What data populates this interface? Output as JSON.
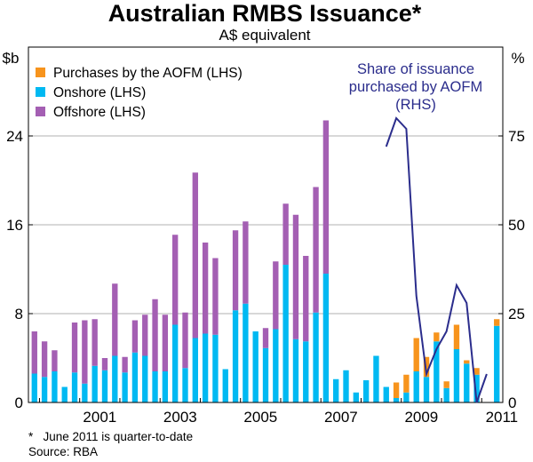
{
  "chart_data": {
    "type": "bar",
    "title": "Australian RMBS Issuance*",
    "subtitle": "A$ equivalent",
    "y_left_unit": "$b",
    "y_right_unit": "%",
    "ylim_left": [
      0,
      32
    ],
    "ylim_right": [
      0,
      100
    ],
    "yticks_left": [
      "0",
      "8",
      "16",
      "24"
    ],
    "yticks_right": [
      "0",
      "25",
      "50",
      "75"
    ],
    "xticks": [
      "2001",
      "2003",
      "2005",
      "2007",
      "2009",
      "2011"
    ],
    "x_range": [
      "Q4 1999",
      "Q2 2011"
    ],
    "colors": {
      "purchases": "#f7941d",
      "onshore": "#00b9f2",
      "offshore": "#a45fb3",
      "line": "#2b2d8c"
    },
    "legend": [
      {
        "key": "purchases",
        "label": "Purchases by the AOFM (LHS)"
      },
      {
        "key": "onshore",
        "label": "Onshore (LHS)"
      },
      {
        "key": "offshore",
        "label": "Offshore (LHS)"
      }
    ],
    "quarters": [
      "1999Q4",
      "2000Q1",
      "2000Q2",
      "2000Q3",
      "2000Q4",
      "2001Q1",
      "2001Q2",
      "2001Q3",
      "2001Q4",
      "2002Q1",
      "2002Q2",
      "2002Q3",
      "2002Q4",
      "2003Q1",
      "2003Q2",
      "2003Q3",
      "2003Q4",
      "2004Q1",
      "2004Q2",
      "2004Q3",
      "2004Q4",
      "2005Q1",
      "2005Q2",
      "2005Q3",
      "2005Q4",
      "2006Q1",
      "2006Q2",
      "2006Q3",
      "2006Q4",
      "2007Q1",
      "2007Q2",
      "2007Q3",
      "2007Q4",
      "2008Q1",
      "2008Q2",
      "2008Q3",
      "2008Q4",
      "2009Q1",
      "2009Q2",
      "2009Q3",
      "2009Q4",
      "2010Q1",
      "2010Q2",
      "2010Q3",
      "2010Q4",
      "2011Q1",
      "2011Q2"
    ],
    "series": [
      {
        "name": "Purchases by the AOFM (LHS)",
        "key": "purchases",
        "values": [
          0,
          0,
          0,
          0,
          0,
          0,
          0,
          0,
          0,
          0,
          0,
          0,
          0,
          0,
          0,
          0,
          0,
          0,
          0,
          0,
          0,
          0,
          0,
          0,
          0,
          0,
          0,
          0,
          0,
          0,
          0,
          0,
          0,
          0,
          0,
          0,
          1.4,
          1.6,
          3.0,
          1.8,
          0.8,
          0.6,
          2.2,
          0.3,
          0.6,
          0,
          0.6
        ]
      },
      {
        "name": "Onshore (LHS)",
        "key": "onshore",
        "values": [
          2.6,
          2.3,
          2.8,
          1.4,
          2.7,
          1.7,
          3.3,
          2.9,
          4.2,
          2.7,
          4.5,
          4.2,
          2.8,
          2.8,
          7.0,
          3.1,
          5.8,
          6.2,
          6.1,
          3.0,
          8.3,
          8.9,
          6.4,
          4.9,
          6.6,
          12.4,
          5.7,
          5.5,
          8.1,
          11.6,
          2.1,
          2.9,
          0.9,
          2.0,
          4.2,
          1.4,
          0.4,
          0.9,
          2.8,
          2.3,
          5.5,
          1.3,
          4.8,
          3.5,
          2.5,
          0,
          6.9
        ]
      },
      {
        "name": "Offshore (LHS)",
        "key": "offshore",
        "values": [
          3.8,
          3.2,
          1.9,
          0,
          4.5,
          5.7,
          4.2,
          1.1,
          6.5,
          1.4,
          2.9,
          3.7,
          6.5,
          5.1,
          8.1,
          5.0,
          14.9,
          8.2,
          6.9,
          0,
          7.2,
          7.4,
          0,
          1.8,
          6.1,
          5.5,
          11.2,
          7.7,
          11.3,
          13.8,
          0,
          0,
          0,
          0,
          0,
          0,
          0,
          0,
          0,
          0,
          0,
          0,
          0,
          0,
          0,
          0,
          0
        ]
      },
      {
        "name": "Share of issuance purchased by AOFM (RHS)",
        "key": "share",
        "start_index": 35,
        "values": [
          72,
          80,
          77,
          30,
          8,
          15,
          20,
          33,
          28,
          0,
          8
        ]
      }
    ],
    "annotation": {
      "lines": [
        "Share of issuance",
        "purchased by AOFM",
        "(RHS)"
      ]
    }
  },
  "footnotes": [
    "*   June 2011 is quarter-to-date",
    "Source: RBA"
  ]
}
